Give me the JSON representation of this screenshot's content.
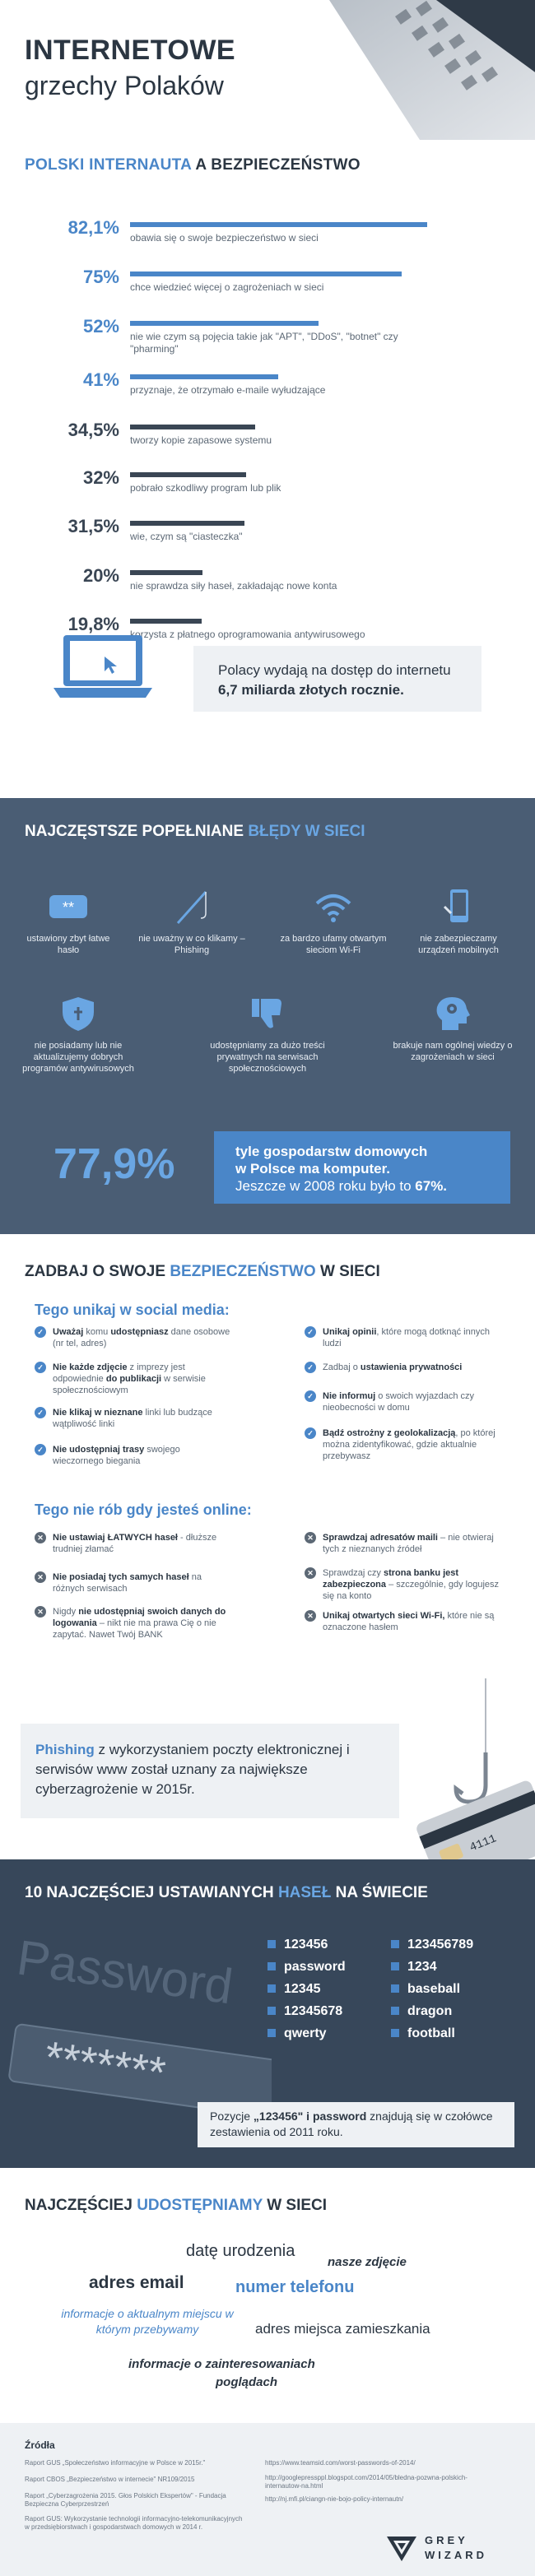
{
  "header": {
    "title_bold": "INTERNETOWE",
    "title_light": "grzechy Polaków"
  },
  "section1": {
    "heading_blue": "POLSKI INTERNAUTA",
    "heading_dark": "A BEZPIECZEŃSTWO",
    "callout_line1": "Polacy wydają na dostęp do internetu",
    "callout_line2": "6,7 miliarda złotych rocznie."
  },
  "chart_data": {
    "type": "bar",
    "title": "POLSKI INTERNAUTA A BEZPIECZEŃSTWO",
    "unit": "%",
    "ylim": [
      0,
      100
    ],
    "categories": [
      "obawia się o swoje bezpieczeństwo w sieci",
      "chce wiedzieć więcej o zagrożeniach w sieci",
      "nie wie czym są pojęcia takie jak \"APT\", \"DDoS\", \"botnet\" czy \"pharming\"",
      "przyznaje, że otrzymało e-maile wyłudzające",
      "tworzy kopie zapasowe systemu",
      "pobrało szkodliwy program lub plik",
      "wie, czym są \"ciasteczka\"",
      "nie sprawdza siły haseł, zakładając nowe konta",
      "korzysta z płatnego oprogramowania antywirusowego"
    ],
    "labels": [
      "82,1%",
      "75%",
      "52%",
      "41%",
      "34,5%",
      "32%",
      "31,5%",
      "20%",
      "19,8%"
    ],
    "values": [
      82.1,
      75,
      52,
      41,
      34.5,
      32,
      31.5,
      20,
      19.8
    ],
    "colors": [
      "#4a86c8",
      "#4a86c8",
      "#4a86c8",
      "#4a86c8",
      "#3a4654",
      "#3a4654",
      "#3a4654",
      "#3a4654",
      "#3a4654"
    ]
  },
  "section2": {
    "heading_dark": "NAJCZĘSTSZE POPEŁNIANE",
    "heading_blue": "BŁĘDY W SIECI",
    "errors": [
      {
        "icon": "password-icon",
        "text": "ustawiony zbyt łatwe hasło"
      },
      {
        "icon": "fishing-rod-icon",
        "text": "nie uważny w co klikamy – Phishing"
      },
      {
        "icon": "wifi-icon",
        "text": "za bardzo ufamy otwartym sieciom Wi-Fi"
      },
      {
        "icon": "mobile-icon",
        "text": "nie zabezpieczamy urządzeń mobilnych"
      },
      {
        "icon": "shield-icon",
        "text": "nie posiadamy lub nie aktualizujemy dobrych programów antywirusowych"
      },
      {
        "icon": "thumbs-down-icon",
        "text": "udostępniamy za dużo treści prywatnych na serwisach społecznościowych"
      },
      {
        "icon": "head-gears-icon",
        "text": "brakuje nam ogólnej wiedzy o zagrożeniach w sieci"
      }
    ],
    "stat_value": "77,9%",
    "stat_line1": "tyle gospodarstw domowych",
    "stat_line2": "w Polsce ma komputer.",
    "stat_line3_pre": "Jeszcze w 2008 roku było to ",
    "stat_line3_val": "67%."
  },
  "section3": {
    "heading_dark1": "ZADBAJ O SWOJE",
    "heading_blue": "BEZPIECZEŃSTWO",
    "heading_dark2": "W SIECI",
    "social_title": "Tego unikaj w social media:",
    "social_left": [
      {
        "b": "Uważaj",
        "t1": " komu ",
        "b2": "udostępniasz",
        "t2": " dane osobowe (nr tel, adres)"
      },
      {
        "b": "Nie każde zdjęcie",
        "t1": " z imprezy jest odpowiednie ",
        "b2": "do publikacji",
        "t2": " w serwisie społecznościowym"
      },
      {
        "b": "Nie klikaj w nieznane",
        "t1": " linki lub budzące wątpliwość linki",
        "b2": "",
        "t2": ""
      },
      {
        "b": "Nie udostępniaj trasy",
        "t1": " swojego wieczornego biegania",
        "b2": "",
        "t2": ""
      }
    ],
    "social_right": [
      {
        "b": "Unikaj opinii",
        "t1": ", które mogą dotknąć innych ludzi",
        "b2": "",
        "t2": ""
      },
      {
        "b": "",
        "t1": "Zadbaj o ",
        "b2": "ustawienia prywatności",
        "t2": ""
      },
      {
        "b": "Nie informuj",
        "t1": " o swoich wyjazdach czy nieobecności w domu",
        "b2": "",
        "t2": ""
      },
      {
        "b": "Bądź ostrożny z geolokalizacją",
        "t1": ", po której można zidentyfikować, gdzie aktualnie przebywasz",
        "b2": "",
        "t2": ""
      }
    ],
    "online_title": "Tego nie rób gdy jesteś online:",
    "online_left": [
      {
        "b": "Nie ustawiaj ŁATWYCH haseł",
        "t1": " - dłuższe trudniej złamać",
        "b2": "",
        "t2": ""
      },
      {
        "b": "Nie posiadaj tych samych haseł",
        "t1": " na różnych serwisach",
        "b2": "",
        "t2": ""
      },
      {
        "b": "",
        "t1": "Nigdy ",
        "b2": "nie udostępniaj swoich danych do logowania",
        "t2": " – nikt nie ma prawa Cię o nie zapytać. Nawet Twój BANK"
      }
    ],
    "online_right": [
      {
        "b": "Sprawdzaj adresatów maili",
        "t1": " – nie otwieraj tych z nieznanych źródeł",
        "b2": "",
        "t2": ""
      },
      {
        "b": "",
        "t1": "Sprawdzaj czy ",
        "b2": "strona banku jest zabezpieczona",
        "t2": " – szczególnie, gdy logujesz się na konto"
      },
      {
        "b": "Unikaj otwartych sieci Wi-Fi,",
        "t1": " które nie są oznaczone hasłem",
        "b2": "",
        "t2": ""
      }
    ],
    "phish_word": "Phishing",
    "phish_text": " z wykorzystaniem poczty elektronicznej i serwisów www został uznany za największe cyberzagrożenie w 2015r."
  },
  "section4": {
    "heading_dark1": "10 NAJCZĘŚCIEJ USTAWIANYCH",
    "heading_blue": "HASEŁ",
    "heading_dark2": "NA ŚWIECIE",
    "bg_word": "Password",
    "bg_stars": "*******",
    "left": [
      "123456",
      "password",
      "12345",
      "12345678",
      "qwerty"
    ],
    "right": [
      "123456789",
      "1234",
      "baseball",
      "dragon",
      "football"
    ],
    "box_pre": "Pozycje ",
    "box_b1": "„123456\" i password",
    "box_post": " znajdują się w czołówce zestawienia od 2011 roku."
  },
  "section5": {
    "heading_dark1": "NAJCZĘŚCIEJ",
    "heading_blue": "UDOSTĘPNIAMY",
    "heading_dark2": "W SIECI",
    "words": [
      "datę urodzenia",
      "nasze zdjęcie",
      "adres email",
      "numer telefonu",
      "informacje o aktualnym miejscu w którym przebywamy",
      "adres miejsca zamieszkania",
      "informacje o zainteresowaniach",
      "poglądach"
    ]
  },
  "footer": {
    "title": "Źródła",
    "left": [
      "Raport GUS „Społeczeństwo informacyjne w Polsce w 2015r.\"",
      "Raport CBOS „Bezpieczeństwo w internecie\" NR109/2015",
      "Raport „Cyberzagrożenia 2015. Głos Polskich Ekspertów\" - Fundacja Bezpieczna Cyberprzestrzeń",
      "Raport GUS: Wykorzystanie technologii informacyjno-telekomunikacyjnych w przedsiębiorstwach i gospodarstwach domowych w 2014 r."
    ],
    "right": [
      "https://www.teamsid.com/worst-passwords-of-2014/",
      "http://googlepressppl.blogspot.com/2014/05/bledna-pozwna-polskich-internautow-na.html",
      "http://nj.mfi.pl/ciangn-nie-bojo-policy-internautn/"
    ],
    "logo_line1": "GREY",
    "logo_line2": "WIZARD"
  }
}
